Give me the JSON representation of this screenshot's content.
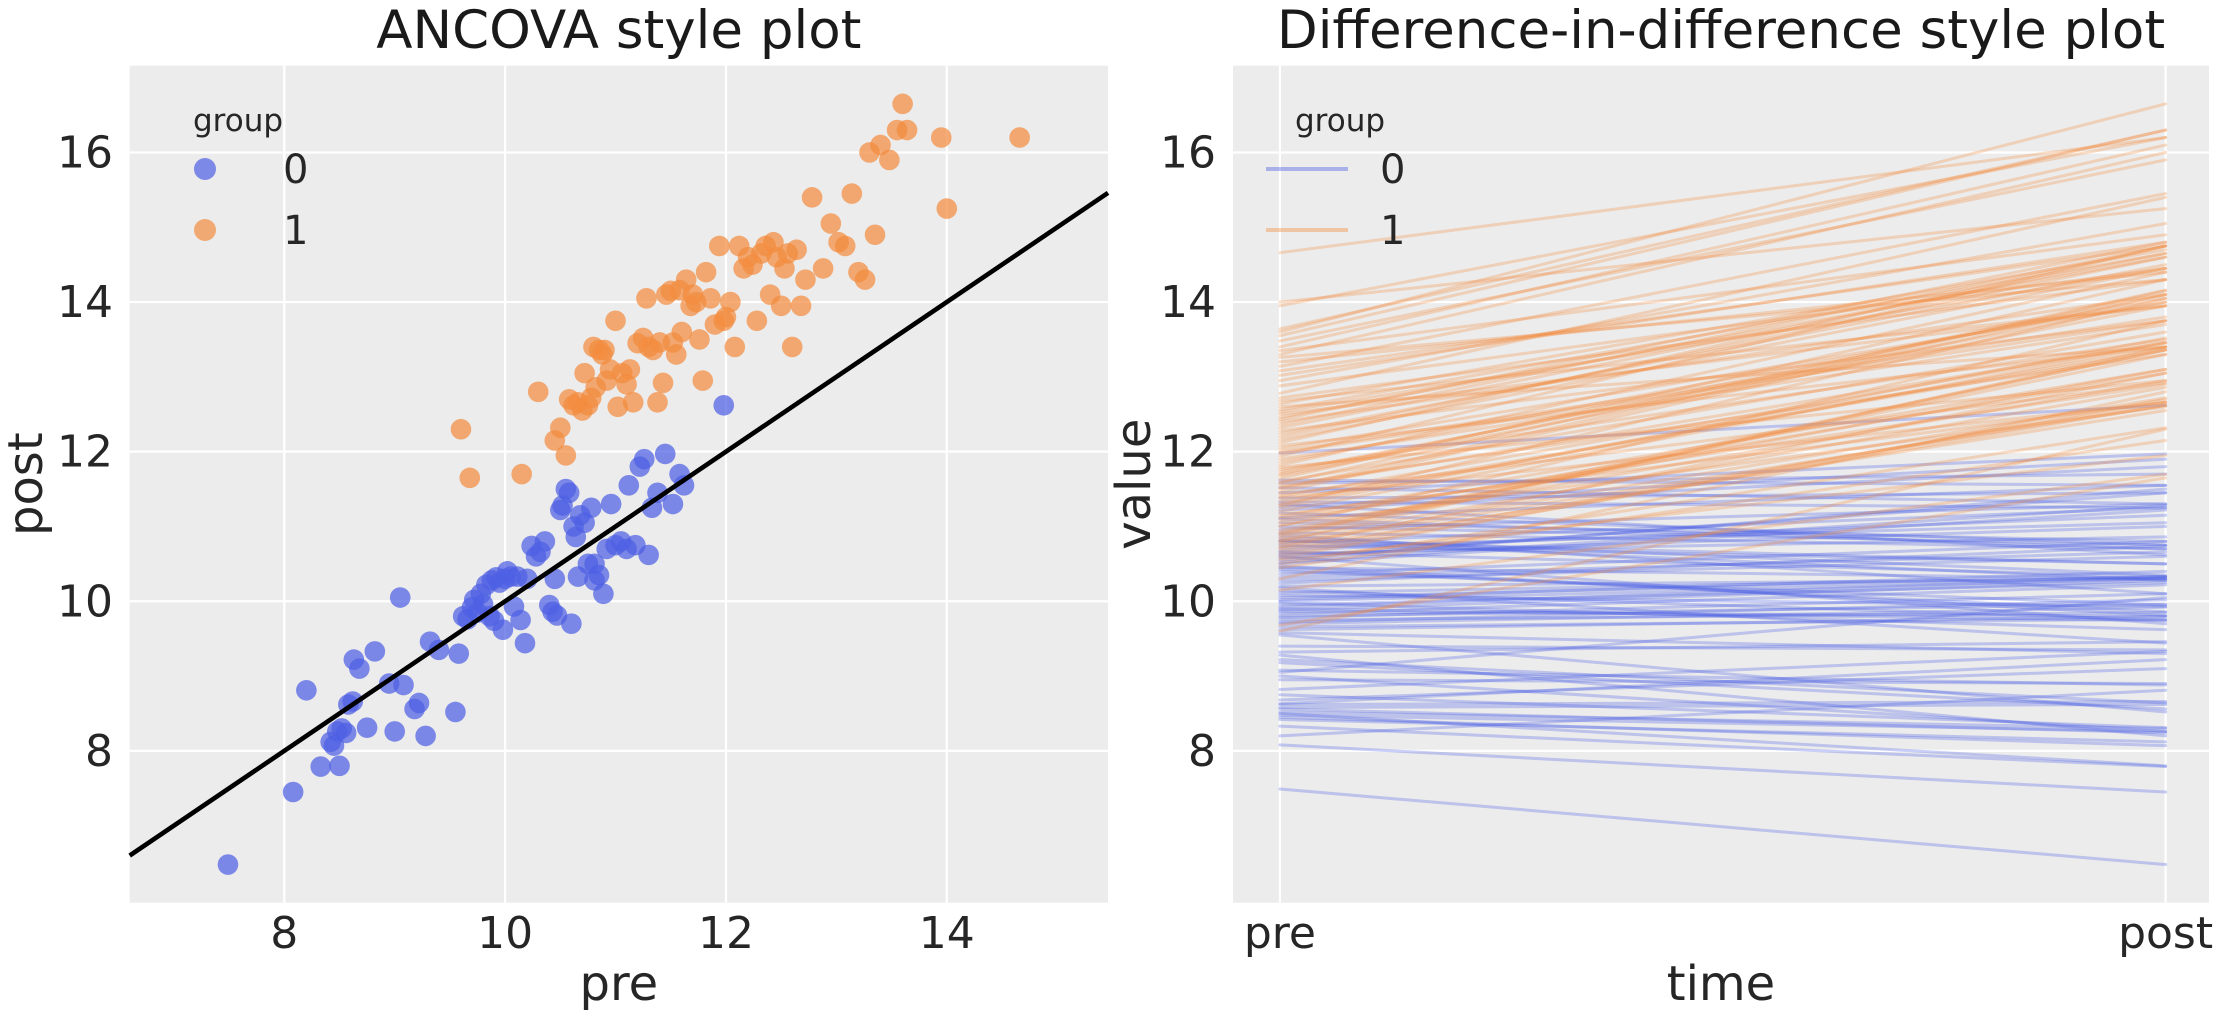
{
  "style": {
    "figure_background": "#ffffff",
    "panel_background": "#ececec",
    "grid_color": "#ffffff",
    "text_color": "#262626",
    "group0_color": "#4d5fe3",
    "group1_color": "#f28c3e",
    "group0_blend": "#7d89e6",
    "group1_blend": "#f0a972",
    "group0_line_blend": "#aeb4ea",
    "group1_line_blend": "#f8cda6",
    "regression_line_color": "#000000",
    "scatter_alpha": 0.72,
    "line_alpha": 0.3
  },
  "chart_data": [
    {
      "type": "scatter",
      "title": "ANCOVA style plot",
      "xlabel": "pre",
      "ylabel": "post",
      "xlim": [
        6.6,
        15.46
      ],
      "ylim": [
        5.97,
        17.16
      ],
      "xticks": [
        8,
        10,
        12,
        14
      ],
      "yticks": [
        8,
        10,
        12,
        14,
        16
      ],
      "grid": true,
      "legend": {
        "title": "group",
        "entries": [
          "0",
          "1"
        ],
        "position": "upper-left"
      },
      "identity_line": {
        "x0": 6.6,
        "y0": 6.6,
        "x1": 15.46,
        "y1": 15.46
      },
      "series": [
        {
          "name": "0",
          "color": "#4d5fe3",
          "points": [
            [
              7.49,
              6.48
            ],
            [
              8.08,
              7.45
            ],
            [
              8.2,
              8.81
            ],
            [
              8.33,
              7.79
            ],
            [
              8.42,
              8.12
            ],
            [
              8.45,
              8.07
            ],
            [
              8.48,
              8.26
            ],
            [
              8.52,
              8.3
            ],
            [
              8.56,
              8.24
            ],
            [
              8.5,
              7.8
            ],
            [
              8.58,
              8.62
            ],
            [
              8.62,
              8.66
            ],
            [
              8.63,
              9.22
            ],
            [
              8.68,
              9.1
            ],
            [
              8.75,
              8.31
            ],
            [
              8.82,
              9.33
            ],
            [
              8.95,
              8.9
            ],
            [
              9.0,
              8.26
            ],
            [
              9.05,
              10.05
            ],
            [
              9.08,
              8.88
            ],
            [
              9.18,
              8.56
            ],
            [
              9.22,
              8.64
            ],
            [
              9.28,
              8.2
            ],
            [
              9.32,
              9.46
            ],
            [
              9.4,
              9.35
            ],
            [
              9.55,
              8.52
            ],
            [
              9.58,
              9.3
            ],
            [
              9.62,
              9.8
            ],
            [
              9.66,
              9.76
            ],
            [
              9.7,
              9.92
            ],
            [
              9.72,
              10.02
            ],
            [
              9.75,
              9.85
            ],
            [
              9.78,
              10.1
            ],
            [
              9.8,
              9.96
            ],
            [
              9.83,
              10.22
            ],
            [
              9.86,
              9.8
            ],
            [
              9.88,
              10.28
            ],
            [
              9.9,
              9.74
            ],
            [
              9.92,
              10.32
            ],
            [
              9.95,
              10.25
            ],
            [
              9.98,
              9.62
            ],
            [
              10.0,
              10.3
            ],
            [
              10.02,
              10.4
            ],
            [
              10.05,
              10.33
            ],
            [
              10.08,
              9.93
            ],
            [
              10.11,
              10.33
            ],
            [
              10.14,
              9.75
            ],
            [
              10.18,
              9.44
            ],
            [
              10.2,
              10.3
            ],
            [
              10.24,
              10.74
            ],
            [
              10.28,
              10.6
            ],
            [
              10.32,
              10.66
            ],
            [
              10.36,
              10.8
            ],
            [
              10.4,
              9.95
            ],
            [
              10.43,
              9.86
            ],
            [
              10.45,
              10.3
            ],
            [
              10.47,
              9.81
            ],
            [
              10.5,
              11.22
            ],
            [
              10.52,
              11.28
            ],
            [
              10.55,
              11.5
            ],
            [
              10.58,
              11.45
            ],
            [
              10.6,
              9.7
            ],
            [
              10.62,
              11.0
            ],
            [
              10.64,
              10.86
            ],
            [
              10.66,
              10.33
            ],
            [
              10.68,
              11.15
            ],
            [
              10.72,
              11.05
            ],
            [
              10.75,
              10.5
            ],
            [
              10.78,
              11.25
            ],
            [
              10.81,
              10.5
            ],
            [
              10.81,
              10.28
            ],
            [
              10.85,
              10.35
            ],
            [
              10.89,
              10.1
            ],
            [
              10.92,
              10.7
            ],
            [
              10.96,
              11.3
            ],
            [
              11.0,
              10.75
            ],
            [
              11.05,
              10.8
            ],
            [
              11.1,
              10.7
            ],
            [
              11.12,
              11.55
            ],
            [
              11.18,
              10.75
            ],
            [
              11.22,
              11.8
            ],
            [
              11.26,
              11.9
            ],
            [
              11.3,
              10.62
            ],
            [
              11.33,
              11.25
            ],
            [
              11.38,
              11.45
            ],
            [
              11.45,
              11.97
            ],
            [
              11.52,
              11.3
            ],
            [
              11.58,
              11.7
            ],
            [
              11.62,
              11.55
            ],
            [
              11.98,
              12.62
            ]
          ]
        },
        {
          "name": "1",
          "color": "#f28c3e",
          "points": [
            [
              9.6,
              12.3
            ],
            [
              9.68,
              11.65
            ],
            [
              10.15,
              11.7
            ],
            [
              10.3,
              12.8
            ],
            [
              10.45,
              12.15
            ],
            [
              10.5,
              12.32
            ],
            [
              10.55,
              11.95
            ],
            [
              10.58,
              12.7
            ],
            [
              10.62,
              12.62
            ],
            [
              10.66,
              12.66
            ],
            [
              10.7,
              12.55
            ],
            [
              10.72,
              13.05
            ],
            [
              10.75,
              12.62
            ],
            [
              10.78,
              12.72
            ],
            [
              10.8,
              13.4
            ],
            [
              10.82,
              12.86
            ],
            [
              10.85,
              13.36
            ],
            [
              10.88,
              13.3
            ],
            [
              10.9,
              13.36
            ],
            [
              10.92,
              12.95
            ],
            [
              10.95,
              13.1
            ],
            [
              11.0,
              13.75
            ],
            [
              11.02,
              12.6
            ],
            [
              11.06,
              13.05
            ],
            [
              11.1,
              12.9
            ],
            [
              11.13,
              13.1
            ],
            [
              11.16,
              12.66
            ],
            [
              11.2,
              13.45
            ],
            [
              11.25,
              13.52
            ],
            [
              11.28,
              14.05
            ],
            [
              11.3,
              13.4
            ],
            [
              11.34,
              13.36
            ],
            [
              11.38,
              12.66
            ],
            [
              11.4,
              13.46
            ],
            [
              11.43,
              12.92
            ],
            [
              11.46,
              14.1
            ],
            [
              11.5,
              14.15
            ],
            [
              11.52,
              13.46
            ],
            [
              11.55,
              13.3
            ],
            [
              11.58,
              14.16
            ],
            [
              11.6,
              13.6
            ],
            [
              11.64,
              14.3
            ],
            [
              11.68,
              13.95
            ],
            [
              11.7,
              14.1
            ],
            [
              11.73,
              14.0
            ],
            [
              11.76,
              13.5
            ],
            [
              11.79,
              12.95
            ],
            [
              11.82,
              14.4
            ],
            [
              11.86,
              14.05
            ],
            [
              11.9,
              13.7
            ],
            [
              11.94,
              14.75
            ],
            [
              11.98,
              13.75
            ],
            [
              12.0,
              13.8
            ],
            [
              12.04,
              14.0
            ],
            [
              12.08,
              13.4
            ],
            [
              12.12,
              14.75
            ],
            [
              12.16,
              14.45
            ],
            [
              12.2,
              14.6
            ],
            [
              12.24,
              14.5
            ],
            [
              12.28,
              13.75
            ],
            [
              12.32,
              14.65
            ],
            [
              12.36,
              14.75
            ],
            [
              12.4,
              14.1
            ],
            [
              12.43,
              14.8
            ],
            [
              12.46,
              14.6
            ],
            [
              12.5,
              13.95
            ],
            [
              12.53,
              14.45
            ],
            [
              12.56,
              14.65
            ],
            [
              12.6,
              13.4
            ],
            [
              12.64,
              14.7
            ],
            [
              12.68,
              13.95
            ],
            [
              12.72,
              14.3
            ],
            [
              12.78,
              15.4
            ],
            [
              12.88,
              14.45
            ],
            [
              12.95,
              15.05
            ],
            [
              13.02,
              14.8
            ],
            [
              13.08,
              14.75
            ],
            [
              13.14,
              15.45
            ],
            [
              13.2,
              14.4
            ],
            [
              13.26,
              14.3
            ],
            [
              13.3,
              16.0
            ],
            [
              13.35,
              14.9
            ],
            [
              13.4,
              16.1
            ],
            [
              13.48,
              15.9
            ],
            [
              13.55,
              16.3
            ],
            [
              13.6,
              16.65
            ],
            [
              13.64,
              16.3
            ],
            [
              13.95,
              16.2
            ],
            [
              14.0,
              15.25
            ],
            [
              14.66,
              16.2
            ]
          ]
        }
      ]
    },
    {
      "type": "line",
      "title": "Difference-in-difference style plot",
      "xlabel": "time",
      "ylabel": "value",
      "xlim": [
        -0.053,
        1.049
      ],
      "ylim": [
        5.97,
        17.16
      ],
      "x_positions": [
        0,
        1
      ],
      "xtick_labels": [
        "pre",
        "post"
      ],
      "yticks": [
        8,
        10,
        12,
        14,
        16
      ],
      "grid": true,
      "legend": {
        "title": "group",
        "entries": [
          "0",
          "1"
        ],
        "position": "upper-left"
      },
      "note": "Each line connects one subject's pre value to its post value; subject data is chart_data[0].series points ([pre,post] pairs) for groups 0 and 1."
    }
  ]
}
